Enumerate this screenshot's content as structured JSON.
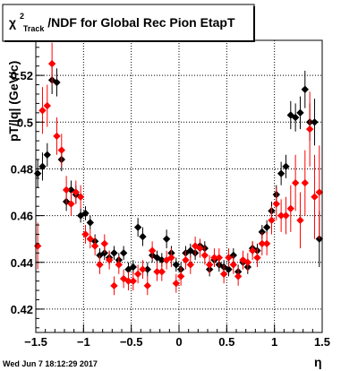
{
  "header": {
    "title_chi": "χ",
    "title_sup": "2",
    "title_sub": "Track",
    "title_rest": "/NDF for Global Rec Pion EtapT",
    "timestamp": "Wed Jun  7 18:12:29 2017"
  },
  "chart_data": {
    "type": "scatter",
    "title": "χ²_Track/NDF for Global Rec Pion EtapT",
    "xlabel": "η",
    "ylabel": "pT/|q| (GeV/c)",
    "xlim": [
      -1.5,
      1.5
    ],
    "ylim": [
      0.41,
      0.535
    ],
    "grid": true,
    "x_ticks": [
      -1.5,
      -1,
      -0.5,
      0,
      0.5,
      1,
      1.5
    ],
    "x_tick_labels": [
      "−1.5",
      "−1",
      "−0.5",
      "0",
      "0.5",
      "1",
      "1.5"
    ],
    "y_ticks": [
      0.42,
      0.44,
      0.46,
      0.48,
      0.5,
      0.52
    ],
    "y_tick_labels": [
      "0.42",
      "0.44",
      "0.46",
      "0.48",
      "0.5",
      "0.52"
    ],
    "series": [
      {
        "color": "#000000",
        "points": [
          [
            -1.48,
            0.478,
            0.006
          ],
          [
            -1.43,
            0.481,
            0.006
          ],
          [
            -1.38,
            0.486,
            0.005
          ],
          [
            -1.33,
            0.518,
            0.006
          ],
          [
            -1.28,
            0.517,
            0.006
          ],
          [
            -1.23,
            0.484,
            0.005
          ],
          [
            -1.18,
            0.466,
            0.004
          ],
          [
            -1.13,
            0.471,
            0.004
          ],
          [
            -1.08,
            0.469,
            0.004
          ],
          [
            -1.03,
            0.46,
            0.003
          ],
          [
            -0.98,
            0.461,
            0.003
          ],
          [
            -0.93,
            0.457,
            0.003
          ],
          [
            -0.88,
            0.449,
            0.003
          ],
          [
            -0.83,
            0.443,
            0.003
          ],
          [
            -0.78,
            0.444,
            0.003
          ],
          [
            -0.73,
            0.442,
            0.003
          ],
          [
            -0.68,
            0.444,
            0.003
          ],
          [
            -0.63,
            0.441,
            0.003
          ],
          [
            -0.58,
            0.444,
            0.003
          ],
          [
            -0.53,
            0.437,
            0.003
          ],
          [
            -0.48,
            0.438,
            0.003
          ],
          [
            -0.43,
            0.455,
            0.004
          ],
          [
            -0.38,
            0.451,
            0.004
          ],
          [
            -0.33,
            0.437,
            0.003
          ],
          [
            -0.28,
            0.443,
            0.003
          ],
          [
            -0.23,
            0.442,
            0.003
          ],
          [
            -0.18,
            0.441,
            0.003
          ],
          [
            -0.13,
            0.45,
            0.004
          ],
          [
            -0.08,
            0.444,
            0.003
          ],
          [
            -0.03,
            0.439,
            0.003
          ],
          [
            0.02,
            0.437,
            0.003
          ],
          [
            0.07,
            0.444,
            0.003
          ],
          [
            0.12,
            0.445,
            0.003
          ],
          [
            0.17,
            0.444,
            0.003
          ],
          [
            0.22,
            0.447,
            0.003
          ],
          [
            0.27,
            0.446,
            0.003
          ],
          [
            0.32,
            0.437,
            0.003
          ],
          [
            0.37,
            0.441,
            0.003
          ],
          [
            0.42,
            0.439,
            0.003
          ],
          [
            0.47,
            0.438,
            0.003
          ],
          [
            0.52,
            0.437,
            0.003
          ],
          [
            0.57,
            0.443,
            0.003
          ],
          [
            0.62,
            0.436,
            0.003
          ],
          [
            0.67,
            0.44,
            0.003
          ],
          [
            0.72,
            0.438,
            0.003
          ],
          [
            0.77,
            0.446,
            0.003
          ],
          [
            0.82,
            0.445,
            0.003
          ],
          [
            0.87,
            0.453,
            0.003
          ],
          [
            0.92,
            0.455,
            0.003
          ],
          [
            0.97,
            0.462,
            0.004
          ],
          [
            1.02,
            0.469,
            0.004
          ],
          [
            1.07,
            0.478,
            0.005
          ],
          [
            1.12,
            0.481,
            0.005
          ],
          [
            1.17,
            0.503,
            0.006
          ],
          [
            1.22,
            0.502,
            0.006
          ],
          [
            1.27,
            0.504,
            0.007
          ],
          [
            1.32,
            0.514,
            0.008
          ],
          [
            1.37,
            0.5,
            0.008
          ],
          [
            1.42,
            0.5,
            0.01
          ],
          [
            1.47,
            0.45,
            0.012
          ]
        ]
      },
      {
        "color": "#ff0000",
        "points": [
          [
            -1.48,
            0.447,
            0.01
          ],
          [
            -1.43,
            0.505,
            0.01
          ],
          [
            -1.38,
            0.507,
            0.009
          ],
          [
            -1.33,
            0.525,
            0.009
          ],
          [
            -1.28,
            0.494,
            0.008
          ],
          [
            -1.23,
            0.488,
            0.007
          ],
          [
            -1.18,
            0.471,
            0.006
          ],
          [
            -1.13,
            0.465,
            0.005
          ],
          [
            -1.08,
            0.47,
            0.005
          ],
          [
            -1.03,
            0.468,
            0.005
          ],
          [
            -0.98,
            0.452,
            0.004
          ],
          [
            -0.93,
            0.45,
            0.004
          ],
          [
            -0.88,
            0.447,
            0.004
          ],
          [
            -0.83,
            0.439,
            0.004
          ],
          [
            -0.78,
            0.448,
            0.004
          ],
          [
            -0.73,
            0.441,
            0.004
          ],
          [
            -0.68,
            0.43,
            0.004
          ],
          [
            -0.63,
            0.439,
            0.004
          ],
          [
            -0.58,
            0.433,
            0.004
          ],
          [
            -0.53,
            0.432,
            0.004
          ],
          [
            -0.48,
            0.432,
            0.004
          ],
          [
            -0.43,
            0.435,
            0.004
          ],
          [
            -0.38,
            0.437,
            0.004
          ],
          [
            -0.33,
            0.43,
            0.004
          ],
          [
            -0.28,
            0.445,
            0.004
          ],
          [
            -0.23,
            0.436,
            0.004
          ],
          [
            -0.18,
            0.436,
            0.004
          ],
          [
            -0.13,
            0.441,
            0.004
          ],
          [
            -0.08,
            0.442,
            0.004
          ],
          [
            -0.03,
            0.431,
            0.004
          ],
          [
            0.02,
            0.434,
            0.004
          ],
          [
            0.07,
            0.441,
            0.004
          ],
          [
            0.12,
            0.439,
            0.004
          ],
          [
            0.17,
            0.447,
            0.004
          ],
          [
            0.22,
            0.446,
            0.004
          ],
          [
            0.27,
            0.443,
            0.004
          ],
          [
            0.32,
            0.439,
            0.004
          ],
          [
            0.37,
            0.442,
            0.004
          ],
          [
            0.42,
            0.442,
            0.004
          ],
          [
            0.47,
            0.435,
            0.004
          ],
          [
            0.52,
            0.442,
            0.004
          ],
          [
            0.57,
            0.439,
            0.004
          ],
          [
            0.62,
            0.434,
            0.004
          ],
          [
            0.67,
            0.441,
            0.004
          ],
          [
            0.72,
            0.44,
            0.004
          ],
          [
            0.77,
            0.445,
            0.004
          ],
          [
            0.82,
            0.442,
            0.004
          ],
          [
            0.87,
            0.448,
            0.005
          ],
          [
            0.92,
            0.448,
            0.005
          ],
          [
            0.97,
            0.458,
            0.006
          ],
          [
            1.02,
            0.465,
            0.007
          ],
          [
            1.07,
            0.46,
            0.007
          ],
          [
            1.12,
            0.46,
            0.008
          ],
          [
            1.17,
            0.463,
            0.01
          ],
          [
            1.22,
            0.474,
            0.012
          ],
          [
            1.27,
            0.458,
            0.012
          ],
          [
            1.32,
            0.474,
            0.014
          ],
          [
            1.37,
            0.497,
            0.016
          ],
          [
            1.42,
            0.468,
            0.018
          ],
          [
            1.47,
            0.47,
            0.02
          ]
        ]
      }
    ]
  }
}
